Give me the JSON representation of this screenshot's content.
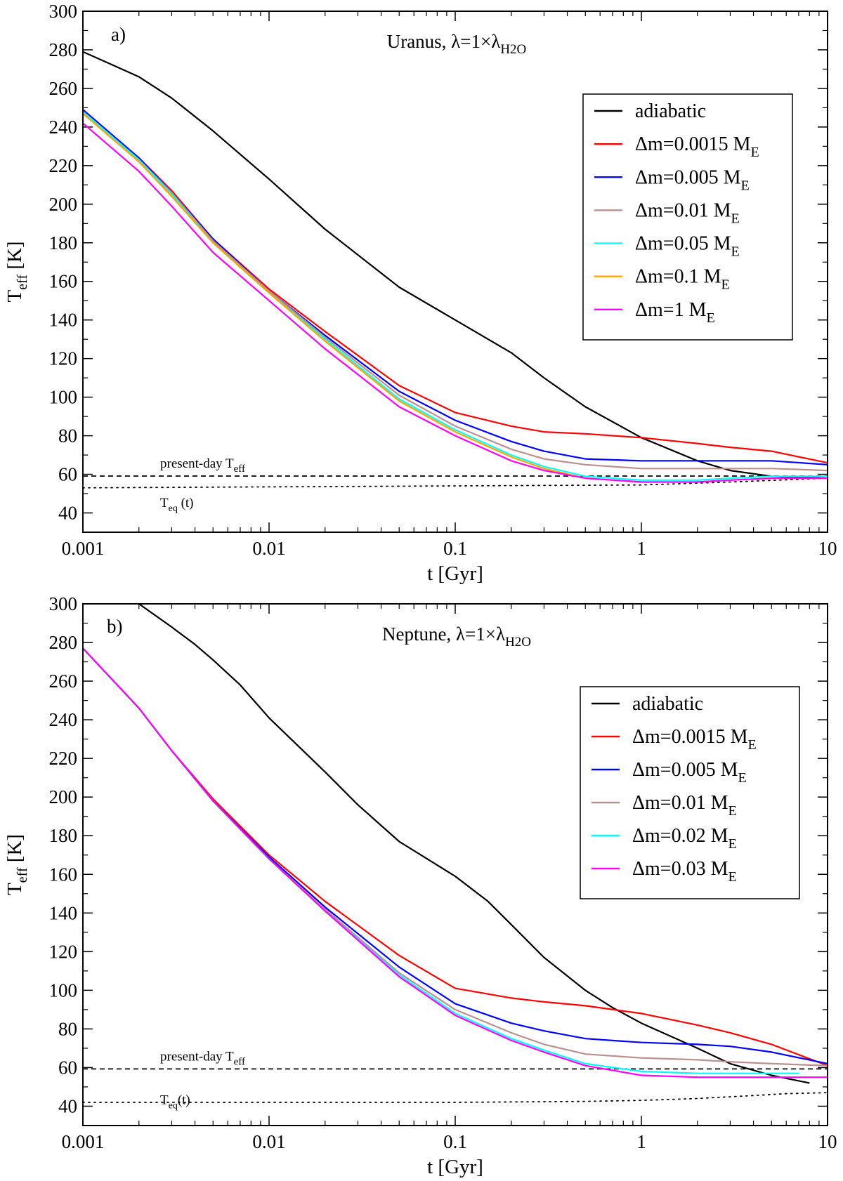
{
  "chart_data": [
    {
      "type": "line",
      "panel_label": "a)",
      "title": "Uranus, λ=1×λ",
      "title_sub": "H2O",
      "xlabel": "t [Gyr]",
      "ylabel_main": "T",
      "ylabel_sub": "eff",
      "ylabel_unit": " [K]",
      "xscale": "log",
      "xlim": [
        0.001,
        10
      ],
      "ylim": [
        30,
        300
      ],
      "xticks": [
        {
          "v": 0.001,
          "label": "0.001"
        },
        {
          "v": 0.01,
          "label": "0.01"
        },
        {
          "v": 0.1,
          "label": "0.1"
        },
        {
          "v": 1,
          "label": "1"
        },
        {
          "v": 10,
          "label": "10"
        }
      ],
      "yticks": [
        {
          "v": 40,
          "label": "40"
        },
        {
          "v": 60,
          "label": "60"
        },
        {
          "v": 80,
          "label": "80"
        },
        {
          "v": 100,
          "label": "100"
        },
        {
          "v": 120,
          "label": "120"
        },
        {
          "v": 140,
          "label": "140"
        },
        {
          "v": 160,
          "label": "160"
        },
        {
          "v": 180,
          "label": "180"
        },
        {
          "v": 200,
          "label": "200"
        },
        {
          "v": 220,
          "label": "220"
        },
        {
          "v": 240,
          "label": "240"
        },
        {
          "v": 260,
          "label": "260"
        },
        {
          "v": 280,
          "label": "280"
        },
        {
          "v": 300,
          "label": "300"
        }
      ],
      "legend_position": "top-right",
      "annotations": {
        "present_day": {
          "text": "present-day T",
          "sub": "eff",
          "value": 59.1
        },
        "teq": {
          "text": "T",
          "sub": "eq",
          "suffix": " (t)"
        }
      },
      "reference_lines": [
        {
          "name": "present-day T_eff",
          "style": "dashed",
          "color": "#000000",
          "x": [
            0.001,
            10
          ],
          "y": [
            59.1,
            59.1
          ]
        },
        {
          "name": "T_eq(t)",
          "style": "dotted",
          "color": "#000000",
          "x": [
            0.001,
            0.01,
            0.1,
            1,
            3,
            10
          ],
          "y": [
            53,
            53.5,
            54,
            54.5,
            56,
            58
          ]
        }
      ],
      "series": [
        {
          "name": "adiabatic",
          "legend": "adiabatic",
          "legend_sub": "",
          "color": "#000000",
          "x": [
            0.001,
            0.002,
            0.003,
            0.005,
            0.01,
            0.02,
            0.05,
            0.1,
            0.2,
            0.3,
            0.5,
            1,
            2,
            3,
            5,
            10
          ],
          "y": [
            279,
            266,
            255,
            238,
            213,
            187,
            157,
            140,
            123,
            110,
            95,
            79,
            67,
            62,
            59,
            58
          ]
        },
        {
          "name": "Δm=0.0015 M_E",
          "legend": "Δm=0.0015 M",
          "legend_sub": "E",
          "color": "#ff0000",
          "x": [
            0.001,
            0.002,
            0.003,
            0.005,
            0.01,
            0.02,
            0.05,
            0.1,
            0.2,
            0.3,
            0.5,
            1,
            2,
            3,
            5,
            10
          ],
          "y": [
            249,
            224,
            207,
            182,
            156,
            134,
            106,
            92,
            85,
            82,
            81,
            79,
            76,
            74,
            72,
            66
          ]
        },
        {
          "name": "Δm=0.005 M_E",
          "legend": "Δm=0.005 M",
          "legend_sub": "E",
          "color": "#0000ff",
          "x": [
            0.001,
            0.002,
            0.003,
            0.005,
            0.01,
            0.02,
            0.05,
            0.1,
            0.2,
            0.3,
            0.5,
            1,
            2,
            3,
            5,
            10
          ],
          "y": [
            249,
            224,
            206,
            182,
            155,
            132,
            103,
            88,
            77,
            72,
            68,
            67,
            67,
            67,
            67,
            65
          ]
        },
        {
          "name": "Δm=0.01 M_E",
          "legend": "Δm=0.01 M",
          "legend_sub": "E",
          "color": "#bc8f8f",
          "x": [
            0.001,
            0.002,
            0.003,
            0.005,
            0.01,
            0.02,
            0.05,
            0.1,
            0.2,
            0.3,
            0.5,
            1,
            2,
            3,
            5,
            10
          ],
          "y": [
            248,
            223,
            206,
            181,
            155,
            131,
            101,
            85,
            73,
            68,
            65,
            63,
            63,
            63,
            63,
            62
          ]
        },
        {
          "name": "Δm=0.05 M_E",
          "legend": "Δm=0.05 M",
          "legend_sub": "E",
          "color": "#00ffff",
          "x": [
            0.001,
            0.002,
            0.003,
            0.005,
            0.01,
            0.02,
            0.05,
            0.1,
            0.2,
            0.3,
            0.5,
            1,
            2,
            3,
            5,
            10
          ],
          "y": [
            248,
            223,
            205,
            180,
            154,
            130,
            99,
            83,
            70,
            64,
            59,
            57,
            57,
            58,
            59,
            59
          ]
        },
        {
          "name": "Δm=0.1 M_E",
          "legend": "Δm=0.1 M",
          "legend_sub": "E",
          "color": "#ffa500",
          "x": [
            0.001,
            0.002,
            0.003,
            0.005,
            0.01,
            0.02,
            0.05,
            0.1,
            0.2,
            0.3,
            0.5,
            1,
            2,
            3,
            5,
            10
          ],
          "y": [
            247,
            222,
            204,
            180,
            154,
            129,
            98,
            82,
            69,
            63,
            58,
            56,
            56,
            57,
            58,
            58
          ]
        },
        {
          "name": "Δm=1 M_E",
          "legend": "Δm=1 M",
          "legend_sub": "E",
          "color": "#ff00ff",
          "x": [
            0.001,
            0.002,
            0.003,
            0.005,
            0.01,
            0.02,
            0.05,
            0.1,
            0.2,
            0.3,
            0.5,
            1,
            2,
            3,
            5,
            10
          ],
          "y": [
            242,
            217,
            199,
            175,
            150,
            125,
            95,
            80,
            67,
            62,
            58,
            56,
            56,
            57,
            58,
            58
          ]
        }
      ]
    },
    {
      "type": "line",
      "panel_label": "b)",
      "title": "Neptune, λ=1×λ",
      "title_sub": "H2O",
      "xlabel": "t [Gyr]",
      "ylabel_main": "T",
      "ylabel_sub": "eff",
      "ylabel_unit": " [K]",
      "xscale": "log",
      "xlim": [
        0.001,
        10
      ],
      "ylim": [
        30,
        300
      ],
      "xticks": [
        {
          "v": 0.001,
          "label": "0.001"
        },
        {
          "v": 0.01,
          "label": "0.01"
        },
        {
          "v": 0.1,
          "label": "0.1"
        },
        {
          "v": 1,
          "label": "1"
        },
        {
          "v": 10,
          "label": "10"
        }
      ],
      "yticks": [
        {
          "v": 40,
          "label": "40"
        },
        {
          "v": 60,
          "label": "60"
        },
        {
          "v": 80,
          "label": "80"
        },
        {
          "v": 100,
          "label": "100"
        },
        {
          "v": 120,
          "label": "120"
        },
        {
          "v": 140,
          "label": "140"
        },
        {
          "v": 160,
          "label": "160"
        },
        {
          "v": 180,
          "label": "180"
        },
        {
          "v": 200,
          "label": "200"
        },
        {
          "v": 220,
          "label": "220"
        },
        {
          "v": 240,
          "label": "240"
        },
        {
          "v": 260,
          "label": "260"
        },
        {
          "v": 280,
          "label": "280"
        },
        {
          "v": 300,
          "label": "300"
        }
      ],
      "legend_position": "right",
      "annotations": {
        "present_day": {
          "text": "present-day T",
          "sub": "eff",
          "value": 59.3
        },
        "teq": {
          "text": "T",
          "sub": "eq",
          "suffix": "(t)"
        }
      },
      "reference_lines": [
        {
          "name": "present-day T_eff",
          "style": "dashed",
          "color": "#000000",
          "x": [
            0.001,
            10
          ],
          "y": [
            59.3,
            59.3
          ]
        },
        {
          "name": "T_eq(t)",
          "style": "dotted",
          "color": "#000000",
          "x": [
            0.001,
            0.01,
            0.1,
            0.5,
            1,
            2,
            4,
            6,
            10
          ],
          "y": [
            42,
            42,
            42,
            42.5,
            43,
            44,
            45.5,
            46.5,
            47
          ]
        }
      ],
      "series": [
        {
          "name": "adiabatic",
          "legend": "adiabatic",
          "legend_sub": "",
          "color": "#000000",
          "x": [
            0.002,
            0.003,
            0.004,
            0.005,
            0.007,
            0.01,
            0.02,
            0.03,
            0.05,
            0.1,
            0.15,
            0.2,
            0.3,
            0.5,
            0.7,
            1,
            2,
            3,
            5,
            8
          ],
          "y": [
            300,
            288,
            279,
            271,
            258,
            241,
            213,
            196,
            177,
            159,
            146,
            134,
            117,
            100,
            91,
            83,
            70,
            62,
            56,
            52
          ]
        },
        {
          "name": "Δm=0.0015 M_E",
          "legend": "Δm=0.0015 M",
          "legend_sub": "E",
          "color": "#ff0000",
          "x": [
            0.001,
            0.002,
            0.003,
            0.005,
            0.01,
            0.02,
            0.05,
            0.1,
            0.2,
            0.3,
            0.5,
            1,
            2,
            3,
            5,
            10
          ],
          "y": [
            277,
            246,
            224,
            199,
            170,
            146,
            118,
            101,
            96,
            94,
            92,
            88,
            82,
            78,
            72,
            61
          ]
        },
        {
          "name": "Δm=0.005 M_E",
          "legend": "Δm=0.005 M",
          "legend_sub": "E",
          "color": "#0000ff",
          "x": [
            0.001,
            0.002,
            0.003,
            0.005,
            0.01,
            0.02,
            0.05,
            0.1,
            0.2,
            0.3,
            0.5,
            1,
            2,
            3,
            5,
            10
          ],
          "y": [
            277,
            246,
            224,
            198,
            169,
            143,
            112,
            93,
            83,
            79,
            75,
            73,
            72,
            71,
            68,
            62
          ]
        },
        {
          "name": "Δm=0.01 M_E",
          "legend": "Δm=0.01 M",
          "legend_sub": "E",
          "color": "#bc8f8f",
          "x": [
            0.001,
            0.002,
            0.003,
            0.005,
            0.01,
            0.02,
            0.05,
            0.1,
            0.2,
            0.3,
            0.5,
            1,
            2,
            3,
            5,
            10
          ],
          "y": [
            277,
            246,
            224,
            198,
            168,
            142,
            109,
            90,
            78,
            72,
            67,
            65,
            64,
            63,
            62,
            61
          ]
        },
        {
          "name": "Δm=0.02 M_E",
          "legend": "Δm=0.02 M",
          "legend_sub": "E",
          "color": "#00ffff",
          "x": [
            0.001,
            0.002,
            0.003,
            0.005,
            0.01,
            0.02,
            0.05,
            0.1,
            0.2,
            0.3,
            0.5,
            1,
            2,
            3,
            5,
            7
          ],
          "y": [
            277,
            246,
            224,
            198,
            168,
            141,
            108,
            88,
            75,
            69,
            62,
            58,
            57,
            57,
            57,
            57
          ]
        },
        {
          "name": "Δm=0.03 M_E",
          "legend": "Δm=0.03 M",
          "legend_sub": "E",
          "color": "#ff00ff",
          "x": [
            0.001,
            0.002,
            0.003,
            0.005,
            0.01,
            0.02,
            0.05,
            0.1,
            0.2,
            0.3,
            0.5,
            1,
            2,
            3,
            5,
            10
          ],
          "y": [
            277,
            246,
            224,
            198,
            168,
            141,
            107,
            87,
            74,
            68,
            61,
            56,
            55,
            55,
            55,
            55
          ]
        }
      ]
    }
  ]
}
